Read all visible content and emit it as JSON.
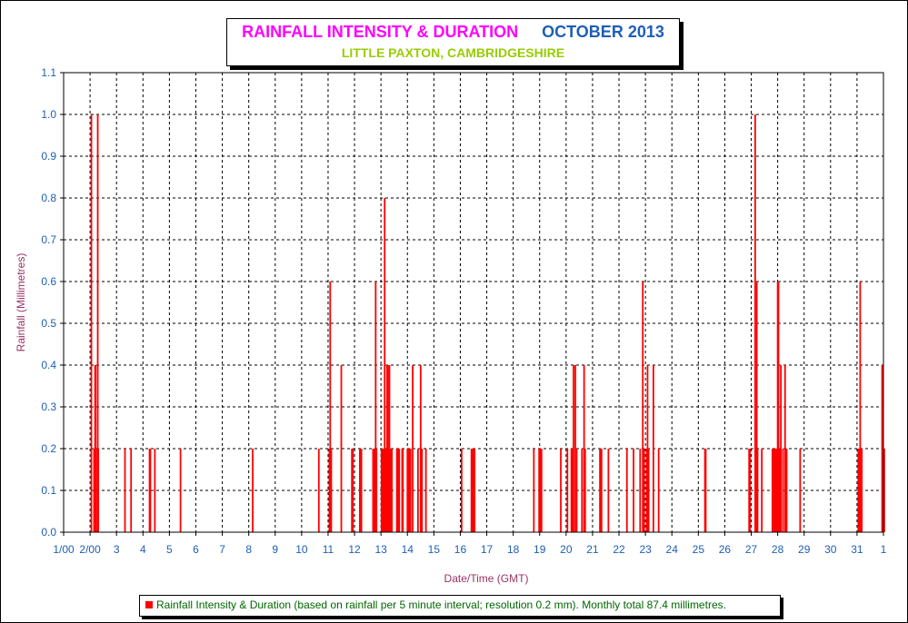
{
  "chart_data": {
    "type": "bar",
    "title": "RAINFALL INTENSITY & DURATION",
    "title_period": "OCTOBER 2013",
    "subtitle": "LITTLE PAXTON, CAMBRIDGESHIRE",
    "xlabel": "Date/Time (GMT)",
    "ylabel": "Rainfall (Millimetres)",
    "ylim": [
      0,
      1.1
    ],
    "yticks": [
      "0.0",
      "0.1",
      "0.2",
      "0.3",
      "0.4",
      "0.5",
      "0.6",
      "0.7",
      "0.8",
      "0.9",
      "1.0",
      "1.1"
    ],
    "xlim": [
      1,
      32
    ],
    "xtick_labels": [
      "1/00",
      "2/00",
      "3",
      "4",
      "5",
      "6",
      "7",
      "8",
      "9",
      "10",
      "11",
      "12",
      "13",
      "14",
      "15",
      "16",
      "17",
      "18",
      "19",
      "20",
      "21",
      "22",
      "23",
      "24",
      "25",
      "26",
      "27",
      "28",
      "29",
      "30",
      "31",
      "1"
    ],
    "grid": true,
    "bar_color": "#ff0000",
    "legend": {
      "label": "Rainfall Intensity & Duration (based on rainfall per 5 minute interval; resolution 0.2 mm). Monthly total 87.4 millimetres.",
      "position": "bottom"
    },
    "points": [
      {
        "day": 2.05,
        "mm": 1.0
      },
      {
        "day": 2.15,
        "mm": 0.2
      },
      {
        "day": 2.17,
        "mm": 0.2
      },
      {
        "day": 2.19,
        "mm": 0.4
      },
      {
        "day": 2.21,
        "mm": 0.4
      },
      {
        "day": 2.23,
        "mm": 0.2
      },
      {
        "day": 2.29,
        "mm": 1.0
      },
      {
        "day": 2.31,
        "mm": 0.2
      },
      {
        "day": 3.32,
        "mm": 0.2
      },
      {
        "day": 3.55,
        "mm": 0.2
      },
      {
        "day": 4.25,
        "mm": 0.2
      },
      {
        "day": 4.28,
        "mm": 0.2
      },
      {
        "day": 4.45,
        "mm": 0.2
      },
      {
        "day": 5.42,
        "mm": 0.2
      },
      {
        "day": 8.15,
        "mm": 0.2
      },
      {
        "day": 10.65,
        "mm": 0.2
      },
      {
        "day": 11.05,
        "mm": 0.2
      },
      {
        "day": 11.08,
        "mm": 0.6
      },
      {
        "day": 11.12,
        "mm": 0.2
      },
      {
        "day": 11.5,
        "mm": 0.4
      },
      {
        "day": 11.9,
        "mm": 0.2
      },
      {
        "day": 11.94,
        "mm": 0.2
      },
      {
        "day": 12.2,
        "mm": 0.2
      },
      {
        "day": 12.23,
        "mm": 0.2
      },
      {
        "day": 12.26,
        "mm": 0.2
      },
      {
        "day": 12.7,
        "mm": 0.2
      },
      {
        "day": 12.73,
        "mm": 0.2
      },
      {
        "day": 12.76,
        "mm": 0.2
      },
      {
        "day": 12.8,
        "mm": 0.6
      },
      {
        "day": 12.83,
        "mm": 0.2
      },
      {
        "day": 13.02,
        "mm": 0.2
      },
      {
        "day": 13.05,
        "mm": 0.2
      },
      {
        "day": 13.08,
        "mm": 0.2
      },
      {
        "day": 13.11,
        "mm": 0.2
      },
      {
        "day": 13.14,
        "mm": 0.8
      },
      {
        "day": 13.17,
        "mm": 0.2
      },
      {
        "day": 13.2,
        "mm": 0.2
      },
      {
        "day": 13.23,
        "mm": 0.4
      },
      {
        "day": 13.26,
        "mm": 0.4
      },
      {
        "day": 13.29,
        "mm": 0.2
      },
      {
        "day": 13.32,
        "mm": 0.4
      },
      {
        "day": 13.35,
        "mm": 0.2
      },
      {
        "day": 13.38,
        "mm": 0.2
      },
      {
        "day": 13.41,
        "mm": 0.2
      },
      {
        "day": 13.6,
        "mm": 0.2
      },
      {
        "day": 13.63,
        "mm": 0.2
      },
      {
        "day": 13.66,
        "mm": 0.2
      },
      {
        "day": 13.69,
        "mm": 0.2
      },
      {
        "day": 13.8,
        "mm": 0.2
      },
      {
        "day": 13.83,
        "mm": 0.2
      },
      {
        "day": 14.0,
        "mm": 0.2
      },
      {
        "day": 14.03,
        "mm": 0.2
      },
      {
        "day": 14.06,
        "mm": 0.2
      },
      {
        "day": 14.09,
        "mm": 0.2
      },
      {
        "day": 14.12,
        "mm": 0.2
      },
      {
        "day": 14.2,
        "mm": 0.4
      },
      {
        "day": 14.4,
        "mm": 0.2
      },
      {
        "day": 14.5,
        "mm": 0.4
      },
      {
        "day": 14.55,
        "mm": 0.2
      },
      {
        "day": 14.7,
        "mm": 0.2
      },
      {
        "day": 16.05,
        "mm": 0.2
      },
      {
        "day": 16.42,
        "mm": 0.2
      },
      {
        "day": 16.45,
        "mm": 0.2
      },
      {
        "day": 16.48,
        "mm": 0.2
      },
      {
        "day": 16.51,
        "mm": 0.2
      },
      {
        "day": 16.54,
        "mm": 0.2
      },
      {
        "day": 18.78,
        "mm": 0.2
      },
      {
        "day": 18.98,
        "mm": 0.2
      },
      {
        "day": 19.01,
        "mm": 0.2
      },
      {
        "day": 19.04,
        "mm": 0.2
      },
      {
        "day": 19.07,
        "mm": 0.2
      },
      {
        "day": 19.8,
        "mm": 0.2
      },
      {
        "day": 20.05,
        "mm": 0.2
      },
      {
        "day": 20.2,
        "mm": 0.2
      },
      {
        "day": 20.25,
        "mm": 0.2
      },
      {
        "day": 20.28,
        "mm": 0.4
      },
      {
        "day": 20.35,
        "mm": 0.4
      },
      {
        "day": 20.4,
        "mm": 0.2
      },
      {
        "day": 20.6,
        "mm": 0.2
      },
      {
        "day": 20.68,
        "mm": 0.4
      },
      {
        "day": 20.72,
        "mm": 0.2
      },
      {
        "day": 21.28,
        "mm": 0.2
      },
      {
        "day": 21.31,
        "mm": 0.2
      },
      {
        "day": 21.34,
        "mm": 0.2
      },
      {
        "day": 21.6,
        "mm": 0.2
      },
      {
        "day": 22.3,
        "mm": 0.2
      },
      {
        "day": 22.55,
        "mm": 0.2
      },
      {
        "day": 22.8,
        "mm": 0.2
      },
      {
        "day": 22.9,
        "mm": 0.6
      },
      {
        "day": 22.95,
        "mm": 0.2
      },
      {
        "day": 23.05,
        "mm": 0.2
      },
      {
        "day": 23.08,
        "mm": 0.4
      },
      {
        "day": 23.12,
        "mm": 0.2
      },
      {
        "day": 23.3,
        "mm": 0.4
      },
      {
        "day": 23.5,
        "mm": 0.2
      },
      {
        "day": 25.25,
        "mm": 0.2
      },
      {
        "day": 25.28,
        "mm": 0.2
      },
      {
        "day": 26.92,
        "mm": 0.2
      },
      {
        "day": 26.95,
        "mm": 0.2
      },
      {
        "day": 27.15,
        "mm": 1.0
      },
      {
        "day": 27.18,
        "mm": 0.2
      },
      {
        "day": 27.21,
        "mm": 0.6
      },
      {
        "day": 27.24,
        "mm": 0.2
      },
      {
        "day": 27.4,
        "mm": 0.2
      },
      {
        "day": 27.8,
        "mm": 0.2
      },
      {
        "day": 27.85,
        "mm": 0.2
      },
      {
        "day": 27.88,
        "mm": 0.2
      },
      {
        "day": 27.92,
        "mm": 0.2
      },
      {
        "day": 27.95,
        "mm": 0.2
      },
      {
        "day": 28.0,
        "mm": 0.6
      },
      {
        "day": 28.03,
        "mm": 0.6
      },
      {
        "day": 28.06,
        "mm": 0.2
      },
      {
        "day": 28.09,
        "mm": 0.2
      },
      {
        "day": 28.12,
        "mm": 0.4
      },
      {
        "day": 28.2,
        "mm": 0.2
      },
      {
        "day": 28.28,
        "mm": 0.4
      },
      {
        "day": 28.31,
        "mm": 0.2
      },
      {
        "day": 28.34,
        "mm": 0.2
      },
      {
        "day": 28.85,
        "mm": 0.2
      },
      {
        "day": 31.05,
        "mm": 0.2
      },
      {
        "day": 31.08,
        "mm": 0.2
      },
      {
        "day": 31.12,
        "mm": 0.6
      },
      {
        "day": 31.18,
        "mm": 0.2
      },
      {
        "day": 31.95,
        "mm": 0.4
      },
      {
        "day": 31.98,
        "mm": 0.2
      },
      {
        "day": 32.0,
        "mm": 0.2
      },
      {
        "day": 32.03,
        "mm": 0.2
      }
    ]
  }
}
